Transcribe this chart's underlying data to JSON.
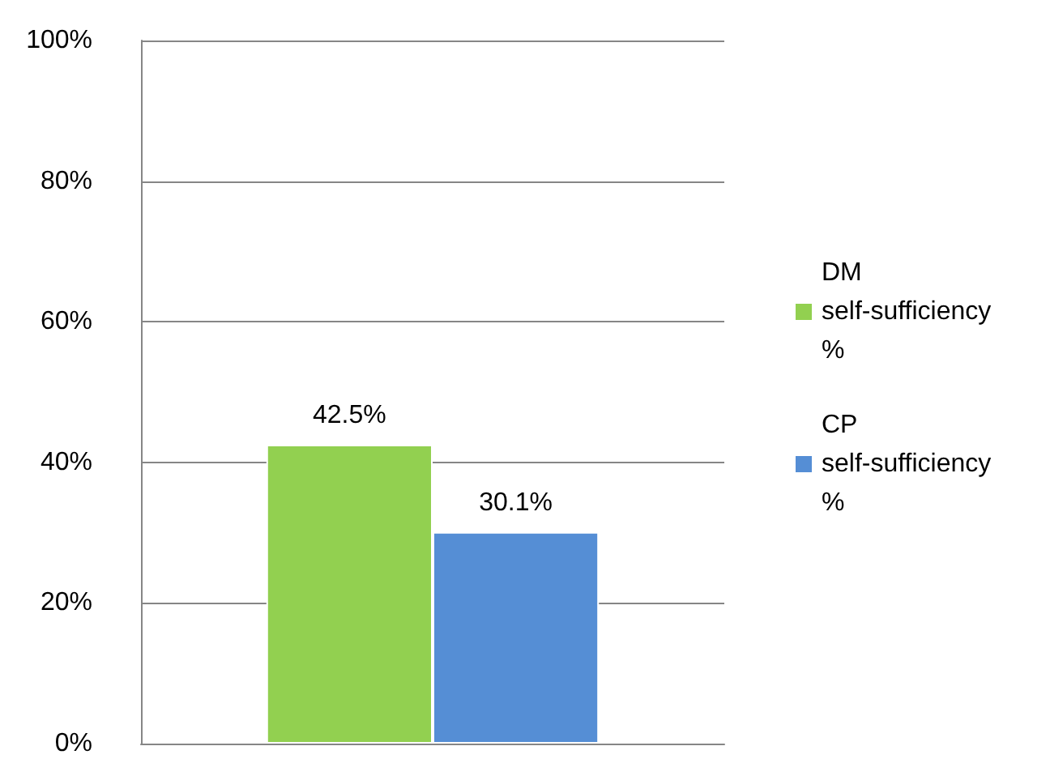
{
  "chart_data": {
    "type": "bar",
    "categories": [
      null
    ],
    "series": [
      {
        "name": "DM self-sufficiency %",
        "color": "#92d050",
        "values": [
          42.5
        ],
        "value_labels": [
          "42.5%"
        ]
      },
      {
        "name": "CP self-sufficiency %",
        "color": "#558ed5",
        "values": [
          30.1
        ],
        "value_labels": [
          "30.1%"
        ]
      }
    ],
    "ylim": [
      0,
      100
    ],
    "yticks": [
      {
        "value": 0,
        "label": "0%"
      },
      {
        "value": 20,
        "label": "20%"
      },
      {
        "value": 40,
        "label": "40%"
      },
      {
        "value": 60,
        "label": "60%"
      },
      {
        "value": 80,
        "label": "80%"
      },
      {
        "value": 100,
        "label": "100%"
      }
    ],
    "grid": "y",
    "legend": "right"
  }
}
